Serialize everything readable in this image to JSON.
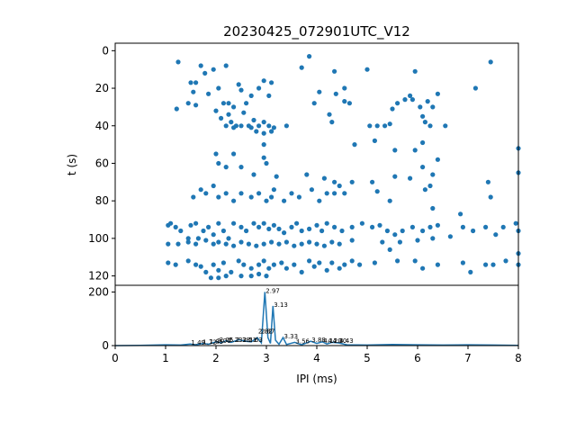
{
  "chart_data": [
    {
      "type": "scatter",
      "title": "20230425_072901UTC_V12",
      "xlabel": "",
      "ylabel": "t (s)",
      "xlim": [
        0,
        8
      ],
      "ylim": [
        125,
        -4
      ],
      "y_inverted": true,
      "xticks": [],
      "yticks": [
        0,
        20,
        40,
        60,
        80,
        100,
        120
      ],
      "marker_color": "#1f77b4",
      "grid": false,
      "points": [
        [
          1.25,
          6
        ],
        [
          1.22,
          31
        ],
        [
          1.45,
          28
        ],
        [
          1.5,
          17
        ],
        [
          1.55,
          22
        ],
        [
          1.6,
          17
        ],
        [
          1.6,
          29
        ],
        [
          1.7,
          8
        ],
        [
          1.78,
          12
        ],
        [
          1.85,
          23
        ],
        [
          1.95,
          10
        ],
        [
          2.05,
          20
        ],
        [
          2.15,
          28
        ],
        [
          2.2,
          8
        ],
        [
          2.25,
          28
        ],
        [
          2.35,
          30
        ],
        [
          2.45,
          18
        ],
        [
          2.5,
          21
        ],
        [
          2.6,
          28
        ],
        [
          2.7,
          24
        ],
        [
          2.85,
          20
        ],
        [
          2.95,
          16
        ],
        [
          3.05,
          24
        ],
        [
          3.1,
          17
        ],
        [
          2.0,
          32
        ],
        [
          2.1,
          36
        ],
        [
          2.25,
          34
        ],
        [
          2.3,
          38
        ],
        [
          2.4,
          40
        ],
        [
          2.55,
          33
        ],
        [
          2.65,
          40
        ],
        [
          2.75,
          37
        ],
        [
          2.85,
          40
        ],
        [
          2.95,
          38
        ],
        [
          3.05,
          40
        ],
        [
          3.15,
          41
        ],
        [
          3.4,
          40
        ],
        [
          2.2,
          40
        ],
        [
          2.35,
          41
        ],
        [
          2.5,
          40
        ],
        [
          2.7,
          41
        ],
        [
          2.8,
          43
        ],
        [
          2.95,
          44
        ],
        [
          3.1,
          43
        ],
        [
          3.7,
          9
        ],
        [
          3.85,
          3
        ],
        [
          3.95,
          28
        ],
        [
          4.05,
          22
        ],
        [
          4.35,
          11
        ],
        [
          4.38,
          23
        ],
        [
          4.25,
          34
        ],
        [
          4.3,
          38
        ],
        [
          4.55,
          20
        ],
        [
          4.55,
          27
        ],
        [
          4.65,
          28
        ],
        [
          5.0,
          10
        ],
        [
          5.05,
          40
        ],
        [
          5.2,
          40
        ],
        [
          5.35,
          40
        ],
        [
          5.45,
          39
        ],
        [
          5.5,
          31
        ],
        [
          5.6,
          28
        ],
        [
          5.75,
          26
        ],
        [
          5.85,
          24
        ],
        [
          5.9,
          26
        ],
        [
          5.95,
          11
        ],
        [
          6.05,
          30
        ],
        [
          6.1,
          35
        ],
        [
          6.15,
          38
        ],
        [
          6.2,
          27
        ],
        [
          6.25,
          40
        ],
        [
          6.3,
          30
        ],
        [
          6.4,
          23
        ],
        [
          6.55,
          40
        ],
        [
          7.15,
          20
        ],
        [
          7.45,
          6
        ],
        [
          4.75,
          50
        ],
        [
          5.15,
          48
        ],
        [
          5.55,
          53
        ],
        [
          5.95,
          53
        ],
        [
          6.1,
          49
        ],
        [
          2.0,
          55
        ],
        [
          2.35,
          55
        ],
        [
          2.95,
          50
        ],
        [
          2.95,
          57
        ],
        [
          2.05,
          60
        ],
        [
          2.2,
          62
        ],
        [
          2.5,
          62
        ],
        [
          2.75,
          66
        ],
        [
          3.0,
          60
        ],
        [
          3.2,
          67
        ],
        [
          3.8,
          66
        ],
        [
          4.15,
          68
        ],
        [
          4.35,
          70
        ],
        [
          4.45,
          72
        ],
        [
          4.7,
          70
        ],
        [
          5.1,
          70
        ],
        [
          5.2,
          75
        ],
        [
          5.55,
          67
        ],
        [
          5.85,
          68
        ],
        [
          6.1,
          62
        ],
        [
          6.15,
          74
        ],
        [
          6.25,
          72
        ],
        [
          6.3,
          66
        ],
        [
          6.4,
          58
        ],
        [
          7.4,
          70
        ],
        [
          7.45,
          78
        ],
        [
          8.0,
          52
        ],
        [
          8.0,
          65
        ],
        [
          1.55,
          78
        ],
        [
          1.7,
          74
        ],
        [
          1.8,
          76
        ],
        [
          1.95,
          72
        ],
        [
          2.05,
          78
        ],
        [
          2.2,
          76
        ],
        [
          2.35,
          80
        ],
        [
          2.5,
          76
        ],
        [
          2.7,
          78
        ],
        [
          2.85,
          76
        ],
        [
          3.0,
          80
        ],
        [
          3.1,
          78
        ],
        [
          3.15,
          74
        ],
        [
          3.35,
          80
        ],
        [
          3.5,
          76
        ],
        [
          3.65,
          78
        ],
        [
          3.9,
          74
        ],
        [
          4.05,
          80
        ],
        [
          4.2,
          76
        ],
        [
          4.35,
          76
        ],
        [
          4.55,
          76
        ],
        [
          5.45,
          80
        ],
        [
          6.3,
          84
        ],
        [
          6.85,
          87
        ],
        [
          1.05,
          93
        ],
        [
          1.1,
          92
        ],
        [
          1.2,
          94
        ],
        [
          1.3,
          96
        ],
        [
          1.45,
          100
        ],
        [
          1.5,
          93
        ],
        [
          1.6,
          92
        ],
        [
          1.65,
          100
        ],
        [
          1.75,
          96
        ],
        [
          1.85,
          94
        ],
        [
          1.95,
          98
        ],
        [
          2.05,
          92
        ],
        [
          2.15,
          96
        ],
        [
          2.25,
          100
        ],
        [
          2.35,
          92
        ],
        [
          2.5,
          94
        ],
        [
          2.6,
          96
        ],
        [
          2.75,
          92
        ],
        [
          2.85,
          94
        ],
        [
          2.95,
          92
        ],
        [
          3.05,
          95
        ],
        [
          3.15,
          93
        ],
        [
          3.25,
          95
        ],
        [
          3.35,
          97
        ],
        [
          3.5,
          94
        ],
        [
          3.6,
          92
        ],
        [
          3.7,
          96
        ],
        [
          3.85,
          95
        ],
        [
          4.0,
          93
        ],
        [
          4.1,
          96
        ],
        [
          4.2,
          92
        ],
        [
          4.35,
          94
        ],
        [
          4.5,
          96
        ],
        [
          4.7,
          94
        ],
        [
          4.9,
          92
        ],
        [
          5.1,
          94
        ],
        [
          5.25,
          93
        ],
        [
          5.4,
          96
        ],
        [
          5.55,
          98
        ],
        [
          5.7,
          96
        ],
        [
          5.9,
          94
        ],
        [
          6.1,
          96
        ],
        [
          6.25,
          94
        ],
        [
          6.4,
          93
        ],
        [
          6.65,
          99
        ],
        [
          6.9,
          94
        ],
        [
          7.1,
          96
        ],
        [
          7.35,
          94
        ],
        [
          7.55,
          98
        ],
        [
          7.7,
          94
        ],
        [
          7.95,
          92
        ],
        [
          8.0,
          96
        ],
        [
          1.05,
          103
        ],
        [
          1.25,
          103
        ],
        [
          1.45,
          102
        ],
        [
          1.6,
          103
        ],
        [
          1.8,
          101
        ],
        [
          1.95,
          103
        ],
        [
          2.05,
          102
        ],
        [
          2.2,
          103
        ],
        [
          2.35,
          104
        ],
        [
          2.5,
          102
        ],
        [
          2.65,
          103
        ],
        [
          2.8,
          104
        ],
        [
          2.95,
          103
        ],
        [
          3.1,
          102
        ],
        [
          3.25,
          103
        ],
        [
          3.4,
          102
        ],
        [
          3.55,
          104
        ],
        [
          3.7,
          103
        ],
        [
          3.85,
          102
        ],
        [
          4.0,
          103
        ],
        [
          4.15,
          104
        ],
        [
          4.3,
          102
        ],
        [
          4.45,
          103
        ],
        [
          4.7,
          101
        ],
        [
          5.3,
          102
        ],
        [
          5.45,
          106
        ],
        [
          5.65,
          102
        ],
        [
          6.0,
          101
        ],
        [
          6.3,
          100
        ],
        [
          8.0,
          108
        ],
        [
          1.05,
          113
        ],
        [
          1.2,
          114
        ],
        [
          1.45,
          112
        ],
        [
          1.6,
          114
        ],
        [
          1.7,
          115
        ],
        [
          1.8,
          118
        ],
        [
          1.95,
          114
        ],
        [
          2.05,
          117
        ],
        [
          2.15,
          113
        ],
        [
          2.3,
          118
        ],
        [
          2.45,
          112
        ],
        [
          2.55,
          114
        ],
        [
          2.7,
          116
        ],
        [
          2.85,
          114
        ],
        [
          2.95,
          112
        ],
        [
          3.05,
          116
        ],
        [
          3.15,
          114
        ],
        [
          3.3,
          113
        ],
        [
          3.4,
          116
        ],
        [
          3.55,
          114
        ],
        [
          3.7,
          118
        ],
        [
          3.85,
          112
        ],
        [
          3.95,
          115
        ],
        [
          4.05,
          113
        ],
        [
          4.2,
          117
        ],
        [
          4.3,
          113
        ],
        [
          4.45,
          116
        ],
        [
          4.55,
          114
        ],
        [
          4.7,
          112
        ],
        [
          4.85,
          114
        ],
        [
          5.15,
          113
        ],
        [
          5.6,
          112
        ],
        [
          5.95,
          112
        ],
        [
          6.1,
          116
        ],
        [
          6.4,
          114
        ],
        [
          6.9,
          113
        ],
        [
          7.05,
          118
        ],
        [
          7.35,
          114
        ],
        [
          7.5,
          114
        ],
        [
          7.75,
          112
        ],
        [
          8.0,
          114
        ],
        [
          3.0,
          120
        ],
        [
          2.85,
          119
        ],
        [
          2.7,
          120
        ],
        [
          2.5,
          120
        ],
        [
          2.2,
          120
        ],
        [
          2.05,
          121
        ],
        [
          1.9,
          121
        ]
      ]
    },
    {
      "type": "line",
      "title": "",
      "xlabel": "IPI (ms)",
      "ylabel": "",
      "xlim": [
        0,
        8
      ],
      "ylim": [
        0,
        225
      ],
      "xticks": [
        0,
        1,
        2,
        3,
        4,
        5,
        6,
        7,
        8
      ],
      "yticks": [
        0,
        200
      ],
      "line_color": "#1f77b4",
      "grid": false,
      "series": [
        {
          "x": [
            0,
            0.5,
            1.0,
            1.3,
            1.49,
            1.6,
            1.75,
            1.85,
            2.0,
            2.1,
            2.2,
            2.3,
            2.45,
            2.6,
            2.7,
            2.82,
            2.9,
            2.97,
            3.03,
            3.08,
            3.13,
            3.18,
            3.25,
            3.33,
            3.4,
            3.56,
            3.7,
            3.88,
            4.0,
            4.11,
            4.2,
            4.3,
            4.43,
            4.6,
            5.0,
            5.5,
            6.0,
            6.5,
            7.0,
            7.5,
            8.0
          ],
          "y": [
            0,
            1,
            3,
            2,
            6,
            3,
            8,
            5,
            14,
            10,
            18,
            12,
            22,
            16,
            14,
            30,
            10,
            200,
            30,
            8,
            148,
            20,
            5,
            30,
            4,
            12,
            3,
            16,
            8,
            14,
            6,
            12,
            10,
            3,
            2,
            4,
            3,
            2,
            3,
            2,
            1
          ]
        }
      ],
      "peak_labels": [
        {
          "x": 1.49,
          "y": 6,
          "text": "1.49"
        },
        {
          "x": 1.72,
          "y": 8,
          "text": "1.72"
        },
        {
          "x": 1.85,
          "y": 10,
          "text": "1.85"
        },
        {
          "x": 2.0,
          "y": 14,
          "text": "2.00"
        },
        {
          "x": 2.05,
          "y": 16,
          "text": "2.05"
        },
        {
          "x": 2.23,
          "y": 16,
          "text": "2.23"
        },
        {
          "x": 2.38,
          "y": 16,
          "text": "2.38"
        },
        {
          "x": 2.51,
          "y": 16,
          "text": "2.51"
        },
        {
          "x": 2.63,
          "y": 16,
          "text": "2.63"
        },
        {
          "x": 2.82,
          "y": 48,
          "text": "2.82"
        },
        {
          "x": 2.87,
          "y": 48,
          "text": "2.87"
        },
        {
          "x": 2.97,
          "y": 200,
          "text": "2.97"
        },
        {
          "x": 3.13,
          "y": 148,
          "text": "3.13"
        },
        {
          "x": 3.33,
          "y": 30,
          "text": "3.33"
        },
        {
          "x": 3.56,
          "y": 12,
          "text": "3.56"
        },
        {
          "x": 3.88,
          "y": 16,
          "text": "3.88"
        },
        {
          "x": 4.11,
          "y": 14,
          "text": "4.11"
        },
        {
          "x": 4.2,
          "y": 14,
          "text": "4.20"
        },
        {
          "x": 4.3,
          "y": 14,
          "text": "4.30"
        },
        {
          "x": 4.43,
          "y": 14,
          "text": "4.43"
        }
      ]
    }
  ]
}
